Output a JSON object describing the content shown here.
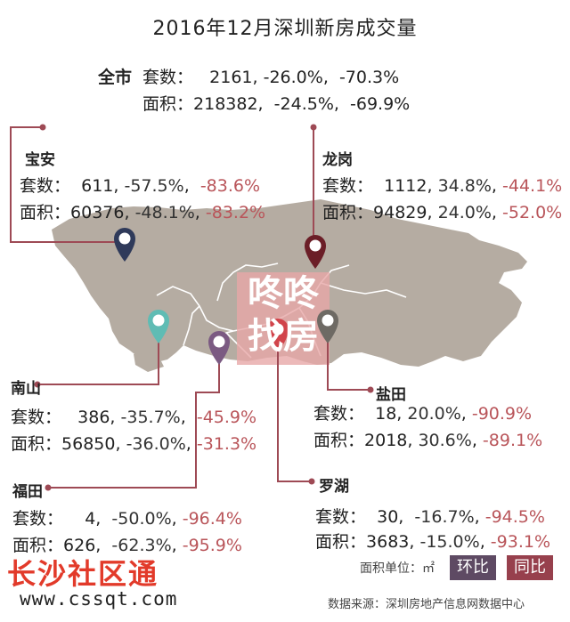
{
  "title": "2016年12月深圳新房成交量",
  "total": {
    "name": "全市",
    "count_label": "套数：",
    "count_value": "2161",
    "count_mom": "-26.0%",
    "count_yoy": "-70.3%",
    "area_label": "面积：",
    "area_value": "218382",
    "area_mom": "-24.5%",
    "area_yoy": "-69.9%"
  },
  "districts": {
    "baoan": {
      "name": "宝安",
      "count_label": "套数：",
      "count_value": "611",
      "count_mom": "-57.5%",
      "count_yoy": "-83.6%",
      "area_label": "面积：",
      "area_value": "60376",
      "area_mom": "-48.1%",
      "area_yoy": "-83.2%",
      "pin_color": "#2f3a5a"
    },
    "longgang": {
      "name": "龙岗",
      "count_label": "套数：",
      "count_value": "1112",
      "count_mom": "34.8%",
      "count_yoy": "-44.1%",
      "area_label": "面积：",
      "area_value": "94829",
      "area_mom": "24.0%",
      "area_yoy": "-52.0%",
      "pin_color": "#6b1e27"
    },
    "nanshan": {
      "name": "南山",
      "count_label": "套数：",
      "count_value": "386",
      "count_mom": "-35.7%",
      "count_yoy": "-45.9%",
      "area_label": "面积：",
      "area_value": "56850",
      "area_mom": "-36.0%",
      "area_yoy": "-31.3%",
      "pin_color": "#5fbcb4"
    },
    "futian": {
      "name": "福田",
      "count_label": "套数：",
      "count_value": "4",
      "count_mom": "-50.0%",
      "count_yoy": "-96.4%",
      "area_label": "面积：",
      "area_value": "626",
      "area_mom": "-62.3%",
      "area_yoy": "-95.9%",
      "pin_color": "#7b5a82"
    },
    "yantian": {
      "name": "盐田",
      "count_label": "套数：",
      "count_value": "18",
      "count_mom": "20.0%",
      "count_yoy": "-90.9%",
      "area_label": "面积：",
      "area_value": "2018",
      "area_mom": "30.6%",
      "area_yoy": "-89.1%",
      "pin_color": "#6e6a64"
    },
    "luohu": {
      "name": "罗湖",
      "count_label": "套数：",
      "count_value": "30",
      "count_mom": "-16.7%",
      "count_yoy": "-94.5%",
      "area_label": "面积：",
      "area_value": "3683",
      "area_mom": "-15.0%",
      "area_yoy": "-93.1%",
      "pin_color": "#d1444b"
    }
  },
  "map_watermark": {
    "line1": "咚咚",
    "line2": "找房"
  },
  "legend": {
    "unit_label": "面积单位：㎡",
    "mom_label": "环比",
    "yoy_label": "同比",
    "mom_color": "#5e4a63",
    "yoy_color": "#97404d"
  },
  "source": "数据来源：深圳房地产信息网数据中心",
  "watermark": {
    "text": "长沙社区通",
    "url": "www.cssqt.com"
  },
  "colors": {
    "land": "#b5aca2",
    "connector": "#9e4a55"
  }
}
